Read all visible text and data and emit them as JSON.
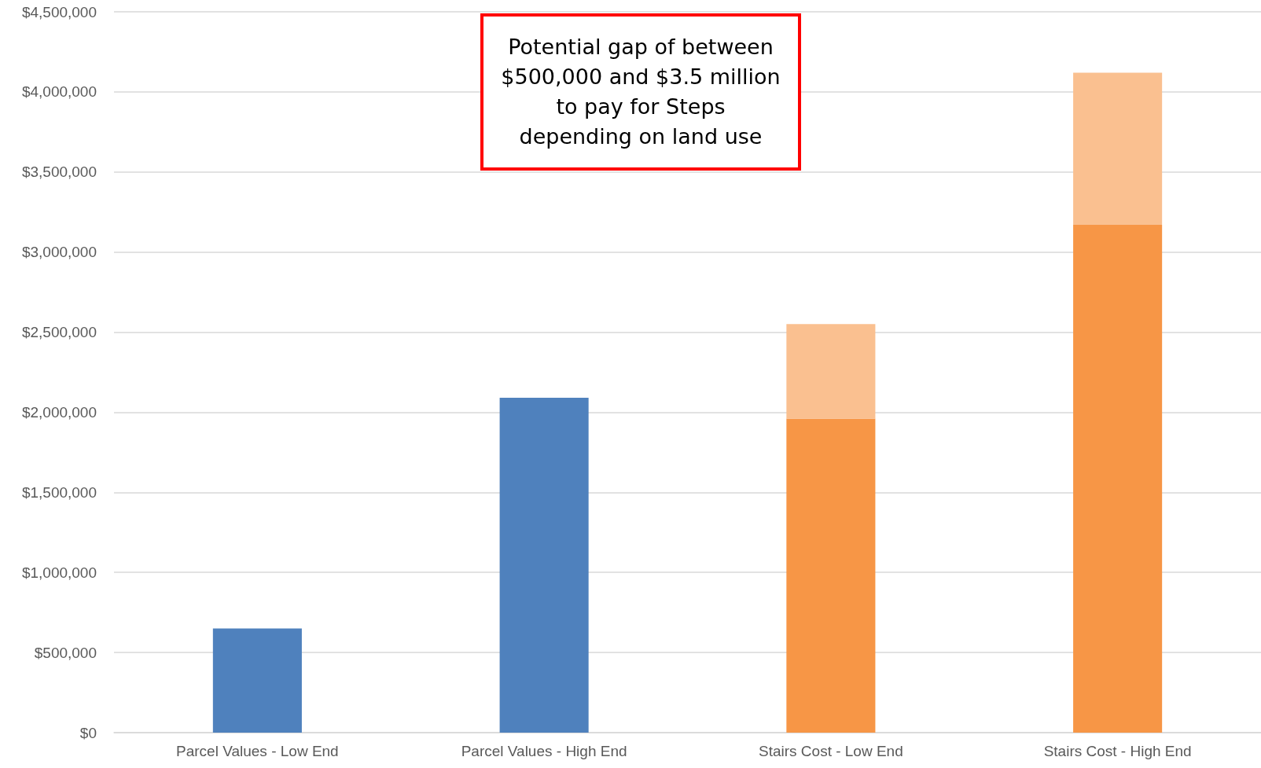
{
  "chart_data": {
    "type": "bar",
    "stacked": true,
    "categories": [
      "Parcel Values - Low End",
      "Parcel Values - High End",
      "Stairs Cost - Low End",
      "Stairs Cost - High End"
    ],
    "series": [
      {
        "color": "#4f81bd",
        "values": [
          650000,
          2090000,
          null,
          null
        ]
      },
      {
        "color": "#f79646",
        "values": [
          null,
          null,
          1960000,
          3170000
        ]
      },
      {
        "color": "#fac090",
        "values": [
          null,
          null,
          590000,
          950000
        ]
      }
    ],
    "ylim": [
      0,
      4500000
    ],
    "yticks": [
      {
        "value": 0,
        "label": "$0"
      },
      {
        "value": 500000,
        "label": "$500,000"
      },
      {
        "value": 1000000,
        "label": "$1,000,000"
      },
      {
        "value": 1500000,
        "label": "$1,500,000"
      },
      {
        "value": 2000000,
        "label": "$2,000,000"
      },
      {
        "value": 2500000,
        "label": "$2,500,000"
      },
      {
        "value": 3000000,
        "label": "$3,000,000"
      },
      {
        "value": 3500000,
        "label": "$3,500,000"
      },
      {
        "value": 4000000,
        "label": "$4,000,000"
      },
      {
        "value": 4500000,
        "label": "$4,500,000"
      }
    ],
    "grid": "y",
    "annotations": [
      "Potential gap of between $500,000 and $3.5 million to pay for Steps depending on land use"
    ]
  }
}
